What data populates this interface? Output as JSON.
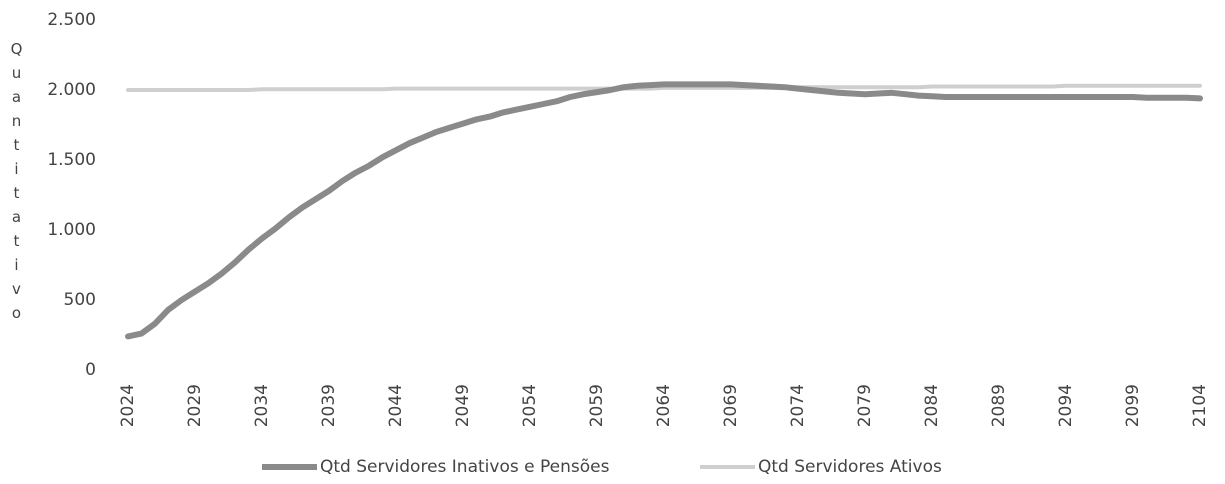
{
  "chart_data": {
    "type": "line",
    "y_label": "Quantitativo",
    "x": [
      2024,
      2025,
      2026,
      2027,
      2028,
      2029,
      2030,
      2031,
      2032,
      2033,
      2034,
      2035,
      2036,
      2037,
      2038,
      2039,
      2040,
      2041,
      2042,
      2043,
      2044,
      2045,
      2046,
      2047,
      2048,
      2049,
      2050,
      2051,
      2052,
      2053,
      2054,
      2055,
      2056,
      2057,
      2058,
      2059,
      2060,
      2061,
      2062,
      2063,
      2064,
      2065,
      2066,
      2067,
      2068,
      2069,
      2070,
      2071,
      2072,
      2073,
      2074,
      2075,
      2076,
      2077,
      2078,
      2079,
      2080,
      2081,
      2082,
      2083,
      2084,
      2085,
      2086,
      2087,
      2088,
      2089,
      2090,
      2091,
      2092,
      2093,
      2094,
      2095,
      2096,
      2097,
      2098,
      2099,
      2100,
      2101,
      2102,
      2103,
      2104
    ],
    "xlim": [
      2024,
      2104
    ],
    "xticks": [
      2024,
      2029,
      2034,
      2039,
      2044,
      2049,
      2054,
      2059,
      2064,
      2069,
      2074,
      2079,
      2084,
      2089,
      2094,
      2099,
      2104
    ],
    "ylim": [
      0,
      2500
    ],
    "yticks": [
      0,
      500,
      {
        "value": 1000,
        "label": "1.000"
      },
      {
        "value": 1500,
        "label": "1.500"
      },
      {
        "value": 2000,
        "label": "2.000"
      },
      {
        "value": 2500,
        "label": "2.500"
      }
    ],
    "grid": false,
    "legend": "bottom",
    "series": [
      {
        "name": "Qtd Servidores Inativos e Pensões",
        "color": "#8a8a8a",
        "values": [
          240,
          260,
          330,
          430,
          500,
          560,
          620,
          690,
          770,
          860,
          940,
          1010,
          1090,
          1160,
          1220,
          1280,
          1350,
          1410,
          1460,
          1520,
          1570,
          1620,
          1660,
          1700,
          1730,
          1760,
          1790,
          1810,
          1840,
          1860,
          1880,
          1900,
          1920,
          1950,
          1970,
          1985,
          2000,
          2020,
          2030,
          2035,
          2040,
          2040,
          2040,
          2040,
          2040,
          2040,
          2035,
          2030,
          2025,
          2020,
          2010,
          2000,
          1990,
          1980,
          1975,
          1970,
          1975,
          1980,
          1970,
          1960,
          1955,
          1950,
          1950,
          1950,
          1950,
          1950,
          1950,
          1950,
          1950,
          1950,
          1950,
          1950,
          1950,
          1950,
          1950,
          1950,
          1945,
          1945,
          1945,
          1945,
          1940
        ]
      },
      {
        "name": "Qtd Servidores Ativos",
        "color": "#cfcfcf",
        "values": [
          2000,
          2000,
          2000,
          2000,
          2000,
          2000,
          2000,
          2000,
          2000,
          2000,
          2005,
          2005,
          2005,
          2005,
          2005,
          2005,
          2005,
          2005,
          2005,
          2005,
          2010,
          2010,
          2010,
          2010,
          2010,
          2010,
          2010,
          2010,
          2010,
          2010,
          2010,
          2010,
          2010,
          2010,
          2010,
          2010,
          2010,
          2010,
          2010,
          2010,
          2015,
          2015,
          2015,
          2015,
          2015,
          2015,
          2015,
          2015,
          2015,
          2015,
          2020,
          2020,
          2020,
          2020,
          2020,
          2020,
          2020,
          2020,
          2020,
          2020,
          2025,
          2025,
          2025,
          2025,
          2025,
          2025,
          2025,
          2025,
          2025,
          2025,
          2030,
          2030,
          2030,
          2030,
          2030,
          2030,
          2030,
          2030,
          2030,
          2030,
          2030
        ]
      }
    ]
  }
}
